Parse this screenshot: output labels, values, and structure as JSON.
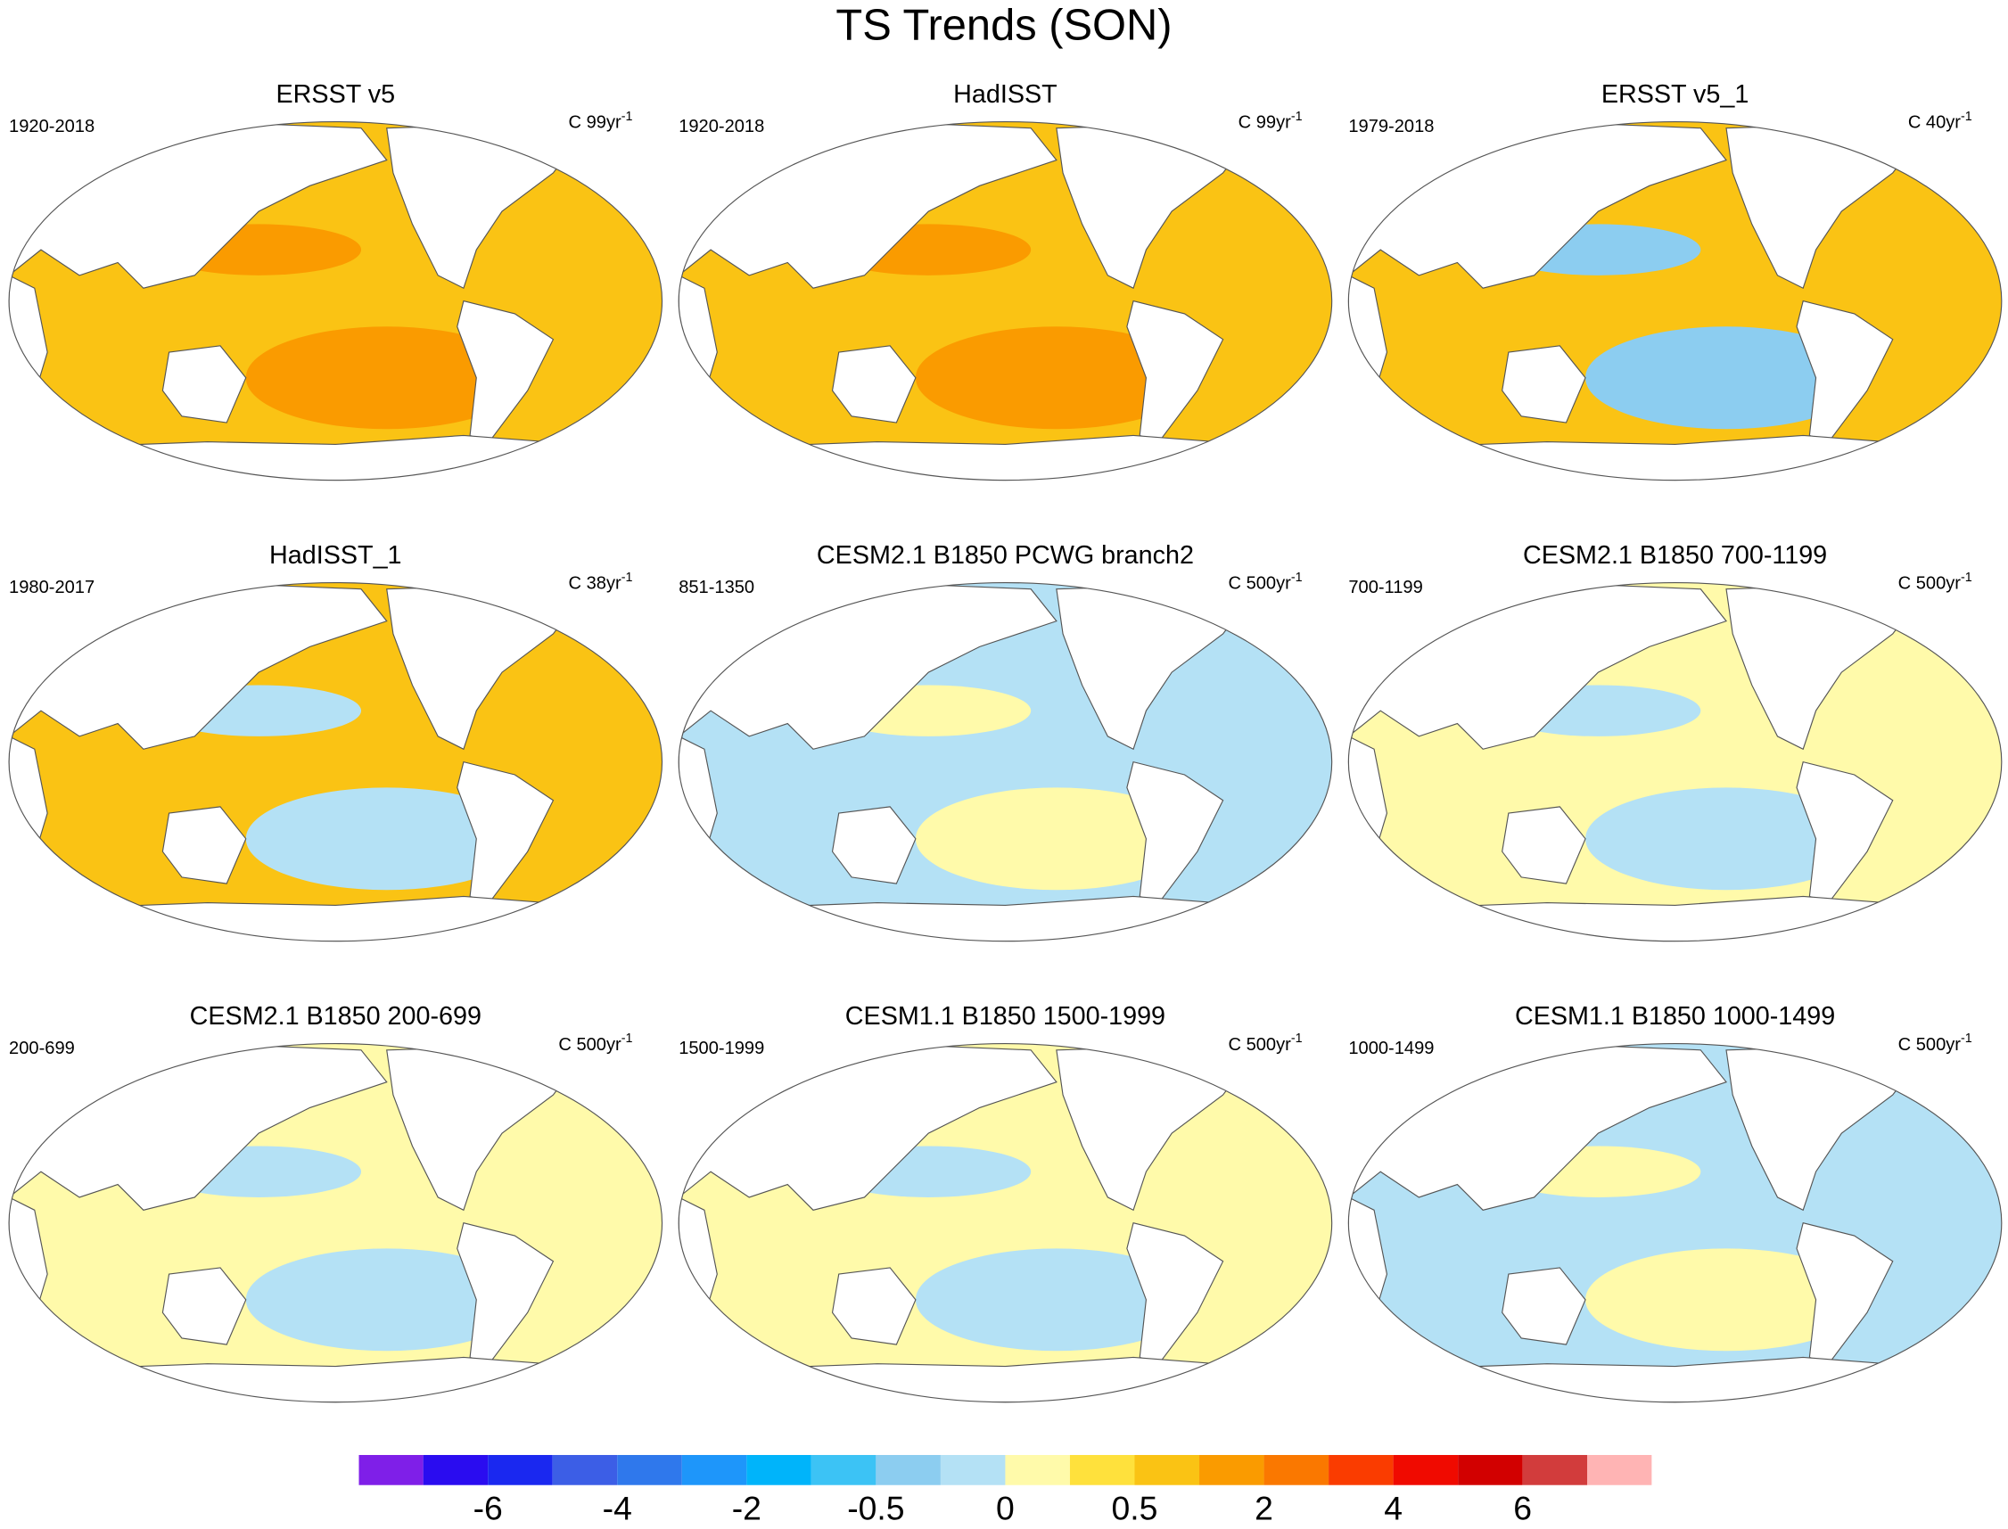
{
  "title": "TS Trends (SON)",
  "panels": [
    {
      "title": "ERSST v5",
      "left_label": "1920-2018",
      "right_label": "C 99yr",
      "right_label_sup": "-1",
      "colors": [
        "#fac314",
        "#fa9b00"
      ]
    },
    {
      "title": "HadISST",
      "left_label": "1920-2018",
      "right_label": "C 99yr",
      "right_label_sup": "-1",
      "colors": [
        "#fac314",
        "#fa9b00"
      ]
    },
    {
      "title": "ERSST v5_1",
      "left_label": "1979-2018",
      "right_label": "C 40yr",
      "right_label_sup": "-1",
      "colors": [
        "#fac314",
        "#8ccdf0"
      ]
    },
    {
      "title": "HadISST_1",
      "left_label": "1980-2017",
      "right_label": "C 38yr",
      "right_label_sup": "-1",
      "colors": [
        "#fac314",
        "#b4e1f5"
      ]
    },
    {
      "title": "CESM2.1 B1850 PCWG branch2",
      "left_label": "851-1350",
      "right_label": "C 500yr",
      "right_label_sup": "-1",
      "colors": [
        "#b4e1f5",
        "#fffaaa"
      ]
    },
    {
      "title": "CESM2.1 B1850 700-1199",
      "left_label": "700-1199",
      "right_label": "C 500yr",
      "right_label_sup": "-1",
      "colors": [
        "#fffaaa",
        "#b4e1f5"
      ]
    },
    {
      "title": "CESM2.1 B1850 200-699",
      "left_label": "200-699",
      "right_label": "C 500yr",
      "right_label_sup": "-1",
      "colors": [
        "#fffaaa",
        "#b4e1f5"
      ]
    },
    {
      "title": "CESM1.1 B1850 1500-1999",
      "left_label": "1500-1999",
      "right_label": "C 500yr",
      "right_label_sup": "-1",
      "colors": [
        "#fffaaa",
        "#b4e1f5"
      ]
    },
    {
      "title": "CESM1.1 B1850 1000-1499",
      "left_label": "1000-1499",
      "right_label": "C 500yr",
      "right_label_sup": "-1",
      "colors": [
        "#b4e1f5",
        "#fffaaa"
      ]
    }
  ],
  "colorbar": {
    "colors": [
      "#7f1fe8",
      "#2a0cf0",
      "#1a28f0",
      "#3c5ee6",
      "#2f78ec",
      "#1e96fa",
      "#00b4fa",
      "#3cc3f5",
      "#8ccdf0",
      "#b4e1f5",
      "#fffaaa",
      "#ffe13c",
      "#fac314",
      "#fa9b00",
      "#fa7800",
      "#fa3c00",
      "#f00a00",
      "#d20000",
      "#d23c3c",
      "#ffb4b4"
    ],
    "labels": [
      -6,
      -4,
      -2,
      -0.5,
      0,
      0.5,
      2,
      4,
      6
    ]
  }
}
